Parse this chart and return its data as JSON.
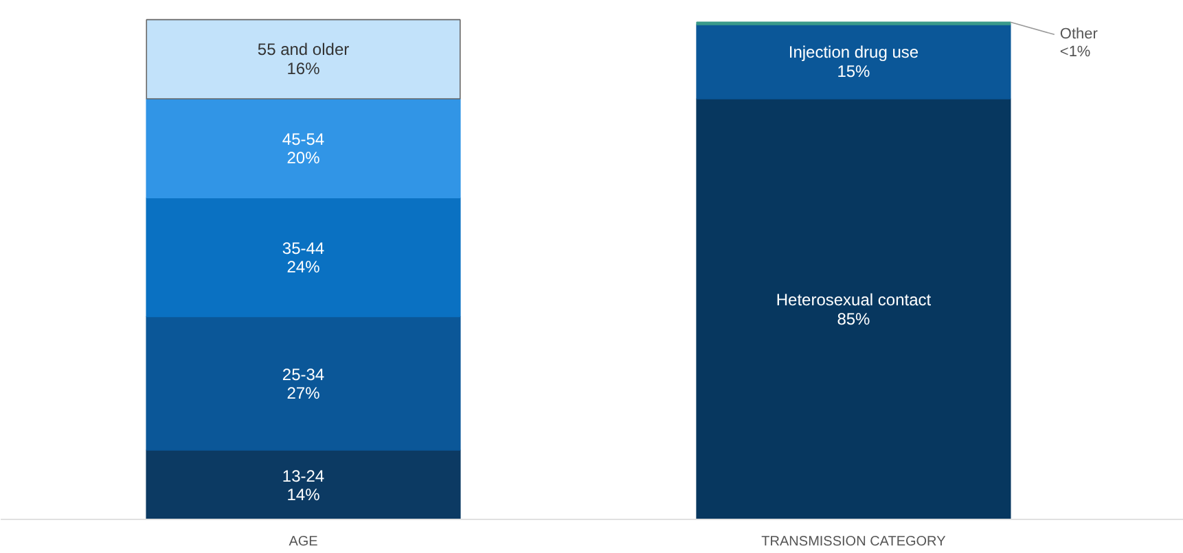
{
  "chart_data": {
    "type": "bar",
    "stacked": true,
    "categories": [
      "AGE",
      "TRANSMISSION CATEGORY"
    ],
    "data_labels": false,
    "legend": false,
    "grid": false,
    "series": [
      {
        "name": "13-24",
        "color": "#0c3a63",
        "values": [
          14,
          null
        ],
        "value_labels": [
          "14%",
          null
        ]
      },
      {
        "name": "25-34",
        "color": "#0b5798",
        "values": [
          27,
          null
        ],
        "value_labels": [
          "27%",
          null
        ]
      },
      {
        "name": "35-44",
        "color": "#0a71c2",
        "values": [
          24,
          null
        ],
        "value_labels": [
          "24%",
          null
        ]
      },
      {
        "name": "45-54",
        "color": "#3195e6",
        "values": [
          20,
          null
        ],
        "value_labels": [
          "20%",
          null
        ]
      },
      {
        "name": "55 and older",
        "color": "#c2e2fa",
        "values": [
          16,
          null
        ],
        "value_labels": [
          "16%",
          null
        ]
      },
      {
        "name": "Heterosexual contact",
        "color": "#07375f",
        "values": [
          null,
          85
        ],
        "value_labels": [
          null,
          "85%"
        ]
      },
      {
        "name": "Injection drug use",
        "color": "#0b5798",
        "values": [
          null,
          15
        ],
        "value_labels": [
          null,
          "15%"
        ]
      },
      {
        "name": "Other",
        "color": "#3a9a8a",
        "values": [
          null,
          0.5
        ],
        "value_labels": [
          null,
          "<1%"
        ]
      }
    ]
  }
}
